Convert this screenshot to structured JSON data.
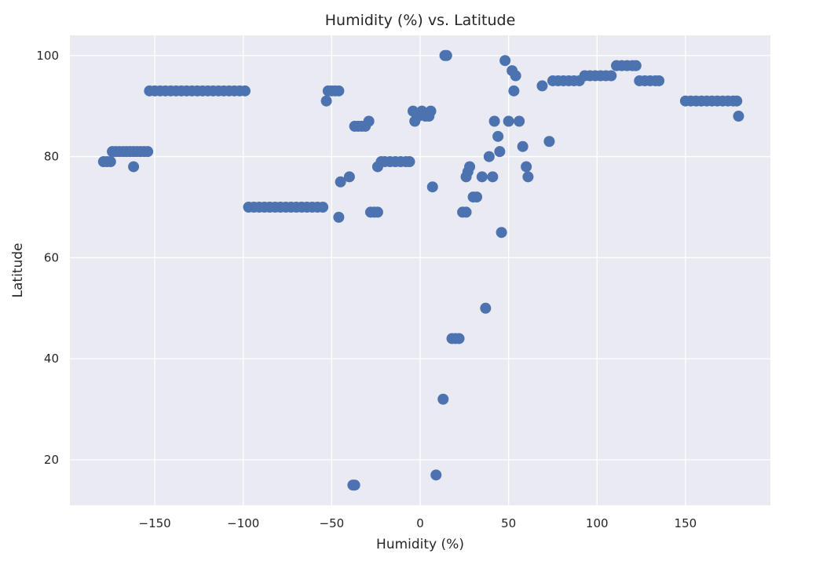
{
  "chart_data": {
    "type": "scatter",
    "title": "Humidity (%) vs. Latitude",
    "xlabel": "Humidity (%)",
    "ylabel": "Latitude",
    "xlim": [
      -198,
      198
    ],
    "ylim": [
      11,
      104
    ],
    "xticks": [
      -150,
      -100,
      -50,
      0,
      50,
      100,
      150
    ],
    "yticks": [
      20,
      40,
      60,
      80,
      100
    ],
    "grid": true,
    "colors": {
      "background": "#eaeaf2",
      "grid": "#ffffff",
      "marker": "#4c72b0"
    },
    "series": [
      {
        "points": [
          [
            -179,
            79
          ],
          [
            -177,
            79
          ],
          [
            -175,
            79
          ],
          [
            -174,
            81
          ],
          [
            -172,
            81
          ],
          [
            -170,
            81
          ],
          [
            -168,
            81
          ],
          [
            -166,
            81
          ],
          [
            -164,
            81
          ],
          [
            -162,
            81
          ],
          [
            -160,
            81
          ],
          [
            -158,
            81
          ],
          [
            -156,
            81
          ],
          [
            -154,
            81
          ],
          [
            -162,
            78
          ],
          [
            -153,
            93
          ],
          [
            -150,
            93
          ],
          [
            -147,
            93
          ],
          [
            -144,
            93
          ],
          [
            -141,
            93
          ],
          [
            -138,
            93
          ],
          [
            -135,
            93
          ],
          [
            -132,
            93
          ],
          [
            -129,
            93
          ],
          [
            -126,
            93
          ],
          [
            -123,
            93
          ],
          [
            -120,
            93
          ],
          [
            -117,
            93
          ],
          [
            -114,
            93
          ],
          [
            -111,
            93
          ],
          [
            -108,
            93
          ],
          [
            -105,
            93
          ],
          [
            -102,
            93
          ],
          [
            -99,
            93
          ],
          [
            -97,
            70
          ],
          [
            -94,
            70
          ],
          [
            -91,
            70
          ],
          [
            -88,
            70
          ],
          [
            -85,
            70
          ],
          [
            -82,
            70
          ],
          [
            -79,
            70
          ],
          [
            -76,
            70
          ],
          [
            -73,
            70
          ],
          [
            -70,
            70
          ],
          [
            -67,
            70
          ],
          [
            -64,
            70
          ],
          [
            -61,
            70
          ],
          [
            -58,
            70
          ],
          [
            -55,
            70
          ],
          [
            -52,
            93
          ],
          [
            -50,
            93
          ],
          [
            -48,
            93
          ],
          [
            -46,
            93
          ],
          [
            -53,
            91
          ],
          [
            -46,
            68
          ],
          [
            -45,
            75
          ],
          [
            -40,
            76
          ],
          [
            -38,
            15
          ],
          [
            -37,
            15
          ],
          [
            -37,
            86
          ],
          [
            -35,
            86
          ],
          [
            -33,
            86
          ],
          [
            -31,
            86
          ],
          [
            -29,
            87
          ],
          [
            -28,
            69
          ],
          [
            -26,
            69
          ],
          [
            -24,
            69
          ],
          [
            -24,
            78
          ],
          [
            -22,
            79
          ],
          [
            -20,
            79
          ],
          [
            -17,
            79
          ],
          [
            -14,
            79
          ],
          [
            -11,
            79
          ],
          [
            -8,
            79
          ],
          [
            -6,
            79
          ],
          [
            -4,
            89
          ],
          [
            -3,
            87
          ],
          [
            -1,
            88
          ],
          [
            1,
            89
          ],
          [
            3,
            88
          ],
          [
            5,
            88
          ],
          [
            6,
            89
          ],
          [
            7,
            74
          ],
          [
            9,
            17
          ],
          [
            13,
            32
          ],
          [
            14,
            100
          ],
          [
            15,
            100
          ],
          [
            18,
            44
          ],
          [
            20,
            44
          ],
          [
            22,
            44
          ],
          [
            24,
            69
          ],
          [
            26,
            69
          ],
          [
            26,
            76
          ],
          [
            27,
            77
          ],
          [
            28,
            78
          ],
          [
            30,
            72
          ],
          [
            32,
            72
          ],
          [
            35,
            76
          ],
          [
            37,
            50
          ],
          [
            39,
            80
          ],
          [
            41,
            76
          ],
          [
            42,
            87
          ],
          [
            44,
            84
          ],
          [
            45,
            81
          ],
          [
            46,
            65
          ],
          [
            48,
            99
          ],
          [
            50,
            87
          ],
          [
            52,
            97
          ],
          [
            53,
            93
          ],
          [
            54,
            96
          ],
          [
            56,
            87
          ],
          [
            58,
            82
          ],
          [
            60,
            78
          ],
          [
            61,
            76
          ],
          [
            69,
            94
          ],
          [
            73,
            83
          ],
          [
            75,
            95
          ],
          [
            78,
            95
          ],
          [
            81,
            95
          ],
          [
            84,
            95
          ],
          [
            87,
            95
          ],
          [
            90,
            95
          ],
          [
            93,
            96
          ],
          [
            96,
            96
          ],
          [
            99,
            96
          ],
          [
            102,
            96
          ],
          [
            105,
            96
          ],
          [
            108,
            96
          ],
          [
            111,
            98
          ],
          [
            114,
            98
          ],
          [
            117,
            98
          ],
          [
            120,
            98
          ],
          [
            122,
            98
          ],
          [
            124,
            95
          ],
          [
            127,
            95
          ],
          [
            130,
            95
          ],
          [
            133,
            95
          ],
          [
            135,
            95
          ],
          [
            150,
            91
          ],
          [
            153,
            91
          ],
          [
            156,
            91
          ],
          [
            159,
            91
          ],
          [
            162,
            91
          ],
          [
            165,
            91
          ],
          [
            168,
            91
          ],
          [
            171,
            91
          ],
          [
            174,
            91
          ],
          [
            177,
            91
          ],
          [
            179,
            91
          ],
          [
            180,
            88
          ]
        ]
      }
    ]
  }
}
